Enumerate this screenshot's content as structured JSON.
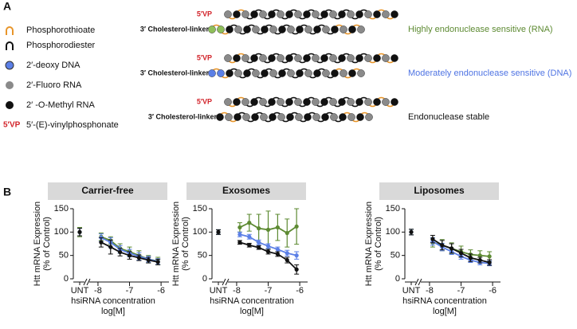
{
  "panel_a": {
    "label": "A",
    "legend": [
      "Phosphorothioate",
      "Phosphorodiester",
      "2′-deoxy DNA",
      "2′-Fluoro RNA",
      "2′ -O-Methyl RNA",
      "5′-(E)-vinylphosphonate"
    ],
    "legend_vp": "5′VP",
    "duplexes": [
      {
        "top_label": "5′VP",
        "bottom_label": "3′ Cholesterol-linker",
        "description": "Highly endonuclease sensitive (RNA)",
        "color": "#5d8a32",
        "end_color": "#8fbf5a"
      },
      {
        "top_label": "5′VP",
        "bottom_label": "3′ Cholesterol-linker",
        "description": "Moderately endonuclease sensitive (DNA)",
        "color": "#4f74e3",
        "end_color": "#5b7fe6"
      },
      {
        "top_label": "5′VP",
        "bottom_label": "3′ Cholesterol-linker",
        "description": "Endonuclease stable",
        "color": "#111111"
      }
    ]
  },
  "panel_b": {
    "label": "B"
  },
  "chart_data": [
    {
      "type": "line",
      "title": "Carrier-free",
      "y_label": "Htt mRNA Expression",
      "y_label2": "(% of Control)",
      "x_label": "hsiRNA concentration",
      "x_label2": "log[M]",
      "unt_label": "UNT",
      "x": [
        -7.9,
        -7.6,
        -7.3,
        -7.0,
        -6.7,
        -6.4,
        -6.1
      ],
      "xlim": [
        -8.15,
        -5.75
      ],
      "xticks": [
        -8,
        -7,
        -6
      ],
      "ylim": [
        0,
        150
      ],
      "yticks": [
        0,
        50,
        100,
        150
      ],
      "series": [
        {
          "color": "#5d8a32",
          "values": [
            90,
            82,
            65,
            58,
            50,
            42,
            38
          ],
          "errors": [
            8,
            8,
            10,
            10,
            10,
            8,
            8
          ],
          "unt_value": 100,
          "unt_error": 10
        },
        {
          "color": "#5b7fe6",
          "values": [
            88,
            78,
            63,
            55,
            48,
            42,
            37
          ],
          "errors": [
            8,
            10,
            8,
            8,
            8,
            6,
            6
          ],
          "unt_value": 100,
          "unt_error": 8
        },
        {
          "color": "#111111",
          "values": [
            78,
            68,
            57,
            50,
            45,
            40,
            36
          ],
          "errors": [
            10,
            15,
            8,
            8,
            6,
            6,
            6
          ],
          "unt_value": 100,
          "unt_error": 8
        }
      ]
    },
    {
      "type": "line",
      "title": "Exosomes",
      "y_label": "Htt mRNA Expression",
      "y_label2": "(% of Control)",
      "x_label": "hsiRNA concentration",
      "x_label2": "log[M]",
      "unt_label": "UNT",
      "x": [
        -7.9,
        -7.6,
        -7.3,
        -7.0,
        -6.7,
        -6.4,
        -6.1
      ],
      "xlim": [
        -8.15,
        -5.75
      ],
      "xticks": [
        -8,
        -7,
        -6
      ],
      "ylim": [
        0,
        150
      ],
      "yticks": [
        0,
        50,
        100,
        150
      ],
      "series": [
        {
          "color": "#5d8a32",
          "values": [
            110,
            120,
            108,
            105,
            110,
            98,
            112
          ],
          "errors": [
            10,
            18,
            30,
            40,
            28,
            30,
            38
          ],
          "unt_value": 100,
          "unt_error": 5
        },
        {
          "color": "#5b7fe6",
          "values": [
            95,
            90,
            78,
            70,
            63,
            55,
            50
          ],
          "errors": [
            5,
            5,
            5,
            5,
            5,
            6,
            8
          ],
          "unt_value": 100,
          "unt_error": 5
        },
        {
          "color": "#111111",
          "values": [
            78,
            72,
            67,
            58,
            53,
            40,
            20
          ],
          "errors": [
            4,
            4,
            4,
            5,
            5,
            6,
            10
          ],
          "unt_value": 100,
          "unt_error": 5
        }
      ]
    },
    {
      "type": "line",
      "title": "Liposomes",
      "y_label": "Htt mRNA Expression",
      "y_label2": "(% of Control)",
      "x_label": "hsiRNA concentration",
      "x_label2": "log[M]",
      "unt_label": "UNT",
      "x": [
        -7.9,
        -7.6,
        -7.3,
        -7.0,
        -6.7,
        -6.4,
        -6.1
      ],
      "xlim": [
        -8.15,
        -5.75
      ],
      "xticks": [
        -8,
        -7,
        -6
      ],
      "ylim": [
        0,
        150
      ],
      "yticks": [
        0,
        50,
        100,
        150
      ],
      "series": [
        {
          "color": "#5d8a32",
          "values": [
            78,
            72,
            65,
            58,
            52,
            50,
            48
          ],
          "errors": [
            10,
            12,
            12,
            12,
            10,
            10,
            10
          ],
          "unt_value": 100,
          "unt_error": 6
        },
        {
          "color": "#5b7fe6",
          "values": [
            80,
            68,
            58,
            48,
            40,
            35,
            33
          ],
          "errors": [
            8,
            8,
            6,
            6,
            5,
            5,
            5
          ],
          "unt_value": 100,
          "unt_error": 6
        },
        {
          "color": "#111111",
          "values": [
            85,
            72,
            65,
            55,
            45,
            40,
            35
          ],
          "errors": [
            8,
            10,
            10,
            8,
            8,
            6,
            6
          ],
          "unt_value": 100,
          "unt_error": 6
        }
      ]
    }
  ]
}
